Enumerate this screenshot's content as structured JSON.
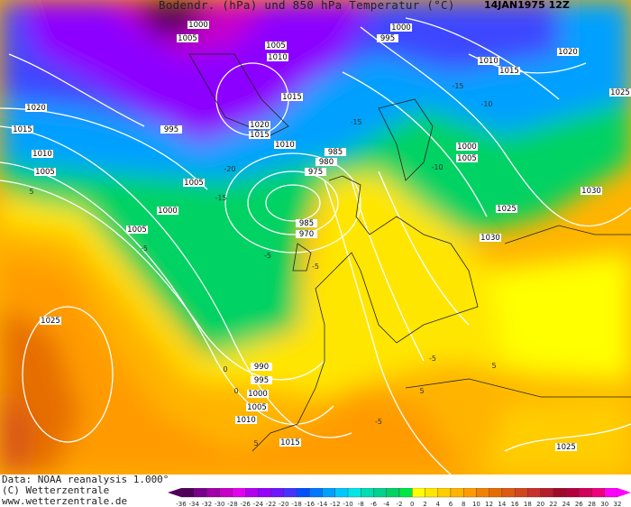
{
  "header": {
    "title": "Bodendr. (hPa) und 850 hPa Temperatur (°C)",
    "date": "14JAN1975 12Z"
  },
  "footer": {
    "data_source": "Data: NOAA reanalysis 1.000°",
    "copyright": "(C) Wetterzentrale",
    "website": "www.wetterzentrale.de"
  },
  "legend": {
    "unit": "°C",
    "ticks": [
      "-36",
      "-34",
      "-32",
      "-30",
      "-28",
      "-26",
      "-24",
      "-22",
      "-20",
      "-18",
      "-16",
      "-14",
      "-12",
      "-10",
      "-8",
      "-6",
      "-4",
      "-2",
      "0",
      "2",
      "4",
      "6",
      "8",
      "10",
      "12",
      "14",
      "16",
      "18",
      "20",
      "22",
      "24",
      "26",
      "28",
      "30",
      "32"
    ],
    "colors": [
      "#50005a",
      "#78008c",
      "#a000aa",
      "#c800c8",
      "#e600f0",
      "#b400f0",
      "#9600ff",
      "#6e14ff",
      "#4632ff",
      "#0050ff",
      "#0078ff",
      "#00a0ff",
      "#00c8ff",
      "#00e6e6",
      "#00dcb4",
      "#00d28c",
      "#00d264",
      "#00e646",
      "#ffff00",
      "#ffe600",
      "#ffcd00",
      "#ffb400",
      "#ff9b00",
      "#f08200",
      "#e66e00",
      "#dc5a14",
      "#d2461e",
      "#c83228",
      "#b41e28",
      "#a00a28",
      "#b4003c",
      "#d2005a",
      "#f0007d",
      "#ff00ff"
    ]
  },
  "isobar_labels": [
    "1000",
    "1005",
    "1005",
    "1010",
    "995",
    "1000",
    "1010",
    "1015",
    "1020",
    "1025",
    "1020",
    "1015",
    "1010",
    "1005",
    "995",
    "1005",
    "1015",
    "1020",
    "1015",
    "1010",
    "985",
    "980",
    "975",
    "1000",
    "1005",
    "985",
    "970",
    "1000",
    "1005",
    "1030",
    "1025",
    "1030",
    "1025",
    "990",
    "995",
    "1000",
    "1005",
    "1010",
    "1015",
    "1025"
  ],
  "temperature_labels": [
    "-15",
    "-15",
    "-20",
    "-15",
    "-10",
    "-10",
    "-5",
    "-5",
    "-5",
    "-5",
    "0",
    "0",
    "5",
    "5",
    "5",
    "5",
    "-5"
  ]
}
